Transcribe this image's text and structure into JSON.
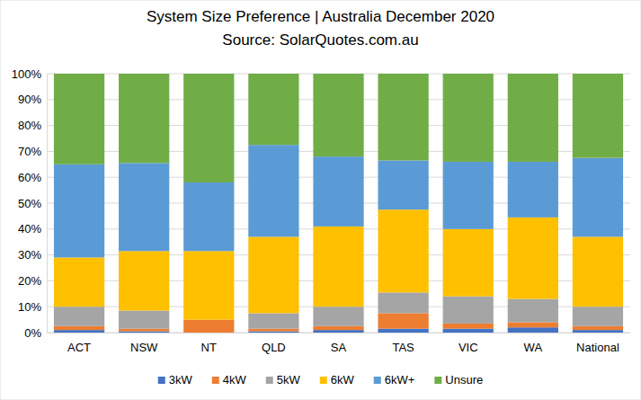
{
  "chart_data": {
    "type": "bar",
    "stacked": true,
    "title": "System Size Preference  | Australia December 2020",
    "subtitle": "Source: SolarQuotes.com.au",
    "categories": [
      "ACT",
      "NSW",
      "NT",
      "QLD",
      "SA",
      "TAS",
      "VIC",
      "WA",
      "National"
    ],
    "series": [
      {
        "name": "3kW",
        "color": "#4472c4",
        "values": [
          1,
          0.5,
          0,
          0.5,
          1,
          1.5,
          1.5,
          2,
          1
        ]
      },
      {
        "name": "4kW",
        "color": "#ed7d31",
        "values": [
          1.5,
          1,
          5,
          1,
          1.5,
          6,
          2,
          2,
          1.5
        ]
      },
      {
        "name": "5kW",
        "color": "#a5a5a5",
        "values": [
          7.5,
          7,
          0,
          6,
          7.5,
          8,
          10.5,
          9,
          7.5
        ]
      },
      {
        "name": "6kW",
        "color": "#ffc000",
        "values": [
          19,
          23,
          26.5,
          29.5,
          31,
          32,
          26,
          31.5,
          27
        ]
      },
      {
        "name": "6kW+",
        "color": "#5b9bd5",
        "values": [
          36,
          34,
          26.5,
          35.5,
          27,
          19,
          26,
          21.5,
          30.5
        ]
      },
      {
        "name": "Unsure",
        "color": "#70ad47",
        "values": [
          35,
          34.5,
          42,
          27.5,
          32,
          33.5,
          34,
          34,
          32.5
        ]
      }
    ],
    "ylim": [
      0,
      100
    ],
    "yticks": [
      {
        "value": 0,
        "label": "0%"
      },
      {
        "value": 10,
        "label": "10%"
      },
      {
        "value": 20,
        "label": "20%"
      },
      {
        "value": 30,
        "label": "30%"
      },
      {
        "value": 40,
        "label": "40%"
      },
      {
        "value": 50,
        "label": "50%"
      },
      {
        "value": 60,
        "label": "60%"
      },
      {
        "value": 70,
        "label": "70%"
      },
      {
        "value": 80,
        "label": "80%"
      },
      {
        "value": 90,
        "label": "90%"
      },
      {
        "value": 100,
        "label": "100%"
      }
    ],
    "grid": true,
    "legend": "bottom"
  }
}
